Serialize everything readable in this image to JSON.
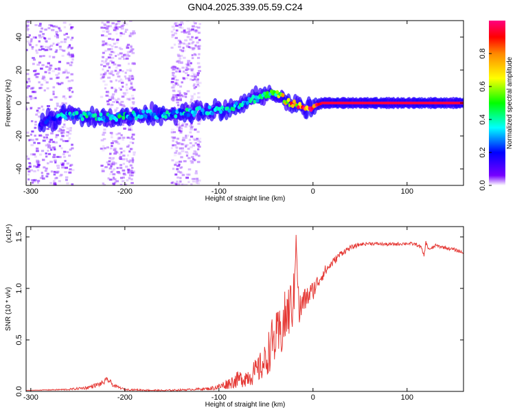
{
  "title": "GN04.2025.339.05.59.C24",
  "chart_data": [
    {
      "type": "heatmap",
      "name": "spectrogram",
      "xlabel": "Height of straight line (km)",
      "ylabel": "Frequency (Hz)",
      "xlim": [
        -305,
        160
      ],
      "ylim": [
        -50,
        50
      ],
      "xticks": [
        "-300",
        "-200",
        "-100",
        "0",
        "100"
      ],
      "xtick_values": [
        -300,
        -200,
        -100,
        0,
        100
      ],
      "yticks": [
        "-40",
        "-20",
        "0",
        "20",
        "40"
      ],
      "ytick_values": [
        -40,
        -20,
        0,
        20,
        40
      ],
      "colorbar": {
        "label": "Normalized spectral amplitude",
        "range": [
          0,
          1
        ],
        "ticks": [
          "0.0",
          "0.2",
          "0.4",
          "0.6",
          "0.8"
        ],
        "tick_values": [
          0.0,
          0.2,
          0.4,
          0.6,
          0.8
        ],
        "colors": [
          "#ffffff",
          "#7700ff",
          "#0000ff",
          "#00ffff",
          "#00ff00",
          "#ffff00",
          "#ff8800",
          "#ff0000",
          "#ff0080"
        ]
      },
      "ridge": {
        "x": [
          -290,
          -265,
          -240,
          -220,
          -200,
          -180,
          -160,
          -140,
          -120,
          -100,
          -90,
          -80,
          -70,
          -60,
          -50,
          -40,
          -30,
          -20,
          -10,
          0,
          10,
          50,
          100,
          115,
          160
        ],
        "y": [
          -12,
          -8,
          -8,
          -9,
          -8,
          -7,
          -7,
          -6,
          -5,
          -4,
          -3,
          -1,
          1,
          3,
          5,
          6,
          2,
          -1,
          -3,
          -2,
          0,
          0,
          0,
          0,
          0
        ],
        "amplitude": [
          0.15,
          0.3,
          0.35,
          0.35,
          0.35,
          0.32,
          0.3,
          0.32,
          0.3,
          0.3,
          0.32,
          0.33,
          0.33,
          0.33,
          0.35,
          0.55,
          0.6,
          0.7,
          0.75,
          0.8,
          0.95,
          0.95,
          0.95,
          0.95,
          0.95
        ]
      },
      "scatter_bands": [
        {
          "x": [
            -305,
            -255
          ],
          "amplitude": 0.2
        },
        {
          "x": [
            -225,
            -190
          ],
          "amplitude": 0.15
        },
        {
          "x": [
            -150,
            -120
          ],
          "amplitude": 0.15
        }
      ]
    },
    {
      "type": "line",
      "name": "snr",
      "xlabel": "Height of straight line (km)",
      "ylabel": "SNR (10 * v/v)",
      "multiplier": "(x10⁴)",
      "xlim": [
        -305,
        160
      ],
      "ylim": [
        0,
        1.6
      ],
      "xticks": [
        "-300",
        "-200",
        "-100",
        "0",
        "100"
      ],
      "xtick_values": [
        -300,
        -200,
        -100,
        0,
        100
      ],
      "yticks": [
        "0.0",
        "0.5",
        "1.0",
        "1.5"
      ],
      "ytick_values": [
        0.0,
        0.5,
        1.0,
        1.5
      ],
      "color": "#e53935",
      "series": [
        {
          "name": "SNR",
          "x": [
            -305,
            -260,
            -240,
            -225,
            -218,
            -212,
            -200,
            -160,
            -130,
            -110,
            -100,
            -90,
            -80,
            -70,
            -60,
            -50,
            -45,
            -40,
            -35,
            -30,
            -25,
            -20,
            -18,
            -15,
            -10,
            0,
            10,
            20,
            30,
            40,
            50,
            60,
            80,
            100,
            110,
            115,
            118,
            120,
            122,
            125,
            130,
            140,
            150,
            160
          ],
          "y": [
            0.01,
            0.02,
            0.04,
            0.08,
            0.12,
            0.06,
            0.02,
            0.01,
            0.02,
            0.03,
            0.05,
            0.09,
            0.13,
            0.16,
            0.22,
            0.33,
            0.5,
            0.55,
            0.6,
            0.75,
            0.85,
            0.95,
            1.55,
            0.8,
            0.9,
            1.0,
            1.15,
            1.25,
            1.35,
            1.4,
            1.43,
            1.44,
            1.43,
            1.44,
            1.43,
            1.4,
            1.32,
            1.45,
            1.4,
            1.38,
            1.42,
            1.4,
            1.38,
            1.35
          ],
          "noise": [
            0.0,
            0.01,
            0.02,
            0.03,
            0.04,
            0.02,
            0.01,
            0.01,
            0.01,
            0.02,
            0.04,
            0.07,
            0.1,
            0.12,
            0.16,
            0.22,
            0.3,
            0.32,
            0.34,
            0.35,
            0.34,
            0.34,
            0.05,
            0.25,
            0.15,
            0.12,
            0.08,
            0.05,
            0.04,
            0.03,
            0.02,
            0.02,
            0.02,
            0.02,
            0.02,
            0.02,
            0.02,
            0.02,
            0.02,
            0.02,
            0.02,
            0.02,
            0.02,
            0.02
          ]
        }
      ]
    }
  ]
}
